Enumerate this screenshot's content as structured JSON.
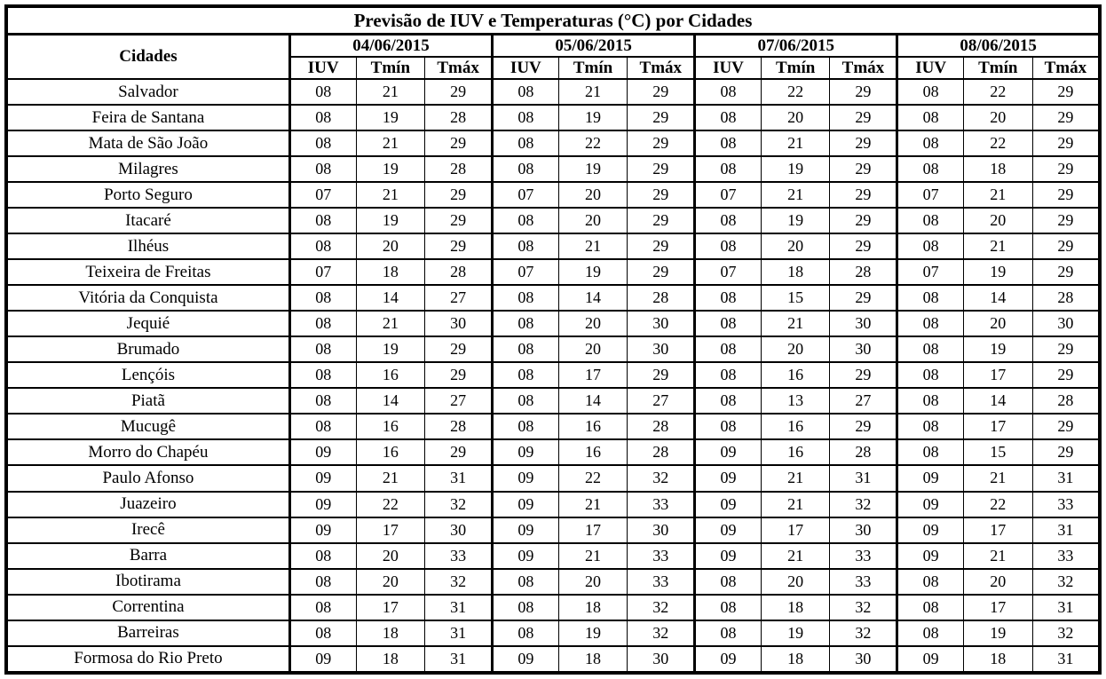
{
  "title": "Previsão de IUV e Temperaturas (°C) por Cidades",
  "colors": {
    "border": "#000000",
    "background": "#ffffff",
    "text": "#000000"
  },
  "table": {
    "city_column_header": "Cidades",
    "date_headers": [
      "04/06/2015",
      "05/06/2015",
      "07/06/2015",
      "08/06/2015"
    ],
    "sub_headers": [
      "IUV",
      "Tmín",
      "Tmáx"
    ],
    "rows": [
      {
        "city": "Salvador",
        "values": [
          [
            "08",
            "21",
            "29"
          ],
          [
            "08",
            "21",
            "29"
          ],
          [
            "08",
            "22",
            "29"
          ],
          [
            "08",
            "22",
            "29"
          ]
        ]
      },
      {
        "city": "Feira de Santana",
        "values": [
          [
            "08",
            "19",
            "28"
          ],
          [
            "08",
            "19",
            "29"
          ],
          [
            "08",
            "20",
            "29"
          ],
          [
            "08",
            "20",
            "29"
          ]
        ]
      },
      {
        "city": "Mata de São João",
        "values": [
          [
            "08",
            "21",
            "29"
          ],
          [
            "08",
            "22",
            "29"
          ],
          [
            "08",
            "21",
            "29"
          ],
          [
            "08",
            "22",
            "29"
          ]
        ]
      },
      {
        "city": "Milagres",
        "values": [
          [
            "08",
            "19",
            "28"
          ],
          [
            "08",
            "19",
            "29"
          ],
          [
            "08",
            "19",
            "29"
          ],
          [
            "08",
            "18",
            "29"
          ]
        ]
      },
      {
        "city": "Porto Seguro",
        "values": [
          [
            "07",
            "21",
            "29"
          ],
          [
            "07",
            "20",
            "29"
          ],
          [
            "07",
            "21",
            "29"
          ],
          [
            "07",
            "21",
            "29"
          ]
        ]
      },
      {
        "city": "Itacaré",
        "values": [
          [
            "08",
            "19",
            "29"
          ],
          [
            "08",
            "20",
            "29"
          ],
          [
            "08",
            "19",
            "29"
          ],
          [
            "08",
            "20",
            "29"
          ]
        ]
      },
      {
        "city": "Ilhéus",
        "values": [
          [
            "08",
            "20",
            "29"
          ],
          [
            "08",
            "21",
            "29"
          ],
          [
            "08",
            "20",
            "29"
          ],
          [
            "08",
            "21",
            "29"
          ]
        ]
      },
      {
        "city": "Teixeira de Freitas",
        "values": [
          [
            "07",
            "18",
            "28"
          ],
          [
            "07",
            "19",
            "29"
          ],
          [
            "07",
            "18",
            "28"
          ],
          [
            "07",
            "19",
            "29"
          ]
        ]
      },
      {
        "city": "Vitória da Conquista",
        "values": [
          [
            "08",
            "14",
            "27"
          ],
          [
            "08",
            "14",
            "28"
          ],
          [
            "08",
            "15",
            "29"
          ],
          [
            "08",
            "14",
            "28"
          ]
        ]
      },
      {
        "city": "Jequié",
        "values": [
          [
            "08",
            "21",
            "30"
          ],
          [
            "08",
            "20",
            "30"
          ],
          [
            "08",
            "21",
            "30"
          ],
          [
            "08",
            "20",
            "30"
          ]
        ]
      },
      {
        "city": "Brumado",
        "values": [
          [
            "08",
            "19",
            "29"
          ],
          [
            "08",
            "20",
            "30"
          ],
          [
            "08",
            "20",
            "30"
          ],
          [
            "08",
            "19",
            "29"
          ]
        ]
      },
      {
        "city": "Lençóis",
        "values": [
          [
            "08",
            "16",
            "29"
          ],
          [
            "08",
            "17",
            "29"
          ],
          [
            "08",
            "16",
            "29"
          ],
          [
            "08",
            "17",
            "29"
          ]
        ]
      },
      {
        "city": "Piatã",
        "values": [
          [
            "08",
            "14",
            "27"
          ],
          [
            "08",
            "14",
            "27"
          ],
          [
            "08",
            "13",
            "27"
          ],
          [
            "08",
            "14",
            "28"
          ]
        ]
      },
      {
        "city": "Mucugê",
        "values": [
          [
            "08",
            "16",
            "28"
          ],
          [
            "08",
            "16",
            "28"
          ],
          [
            "08",
            "16",
            "29"
          ],
          [
            "08",
            "17",
            "29"
          ]
        ]
      },
      {
        "city": "Morro do Chapéu",
        "values": [
          [
            "09",
            "16",
            "29"
          ],
          [
            "09",
            "16",
            "28"
          ],
          [
            "09",
            "16",
            "28"
          ],
          [
            "08",
            "15",
            "29"
          ]
        ]
      },
      {
        "city": "Paulo Afonso",
        "values": [
          [
            "09",
            "21",
            "31"
          ],
          [
            "09",
            "22",
            "32"
          ],
          [
            "09",
            "21",
            "31"
          ],
          [
            "09",
            "21",
            "31"
          ]
        ]
      },
      {
        "city": "Juazeiro",
        "values": [
          [
            "09",
            "22",
            "32"
          ],
          [
            "09",
            "21",
            "33"
          ],
          [
            "09",
            "21",
            "32"
          ],
          [
            "09",
            "22",
            "33"
          ]
        ]
      },
      {
        "city": "Irecê",
        "values": [
          [
            "09",
            "17",
            "30"
          ],
          [
            "09",
            "17",
            "30"
          ],
          [
            "09",
            "17",
            "30"
          ],
          [
            "09",
            "17",
            "31"
          ]
        ]
      },
      {
        "city": "Barra",
        "values": [
          [
            "08",
            "20",
            "33"
          ],
          [
            "09",
            "21",
            "33"
          ],
          [
            "09",
            "21",
            "33"
          ],
          [
            "09",
            "21",
            "33"
          ]
        ]
      },
      {
        "city": "Ibotirama",
        "values": [
          [
            "08",
            "20",
            "32"
          ],
          [
            "08",
            "20",
            "33"
          ],
          [
            "08",
            "20",
            "33"
          ],
          [
            "08",
            "20",
            "32"
          ]
        ]
      },
      {
        "city": "Correntina",
        "values": [
          [
            "08",
            "17",
            "31"
          ],
          [
            "08",
            "18",
            "32"
          ],
          [
            "08",
            "18",
            "32"
          ],
          [
            "08",
            "17",
            "31"
          ]
        ]
      },
      {
        "city": "Barreiras",
        "values": [
          [
            "08",
            "18",
            "31"
          ],
          [
            "08",
            "19",
            "32"
          ],
          [
            "08",
            "19",
            "32"
          ],
          [
            "08",
            "19",
            "32"
          ]
        ]
      },
      {
        "city": "Formosa do Rio Preto",
        "values": [
          [
            "09",
            "18",
            "31"
          ],
          [
            "09",
            "18",
            "30"
          ],
          [
            "09",
            "18",
            "30"
          ],
          [
            "09",
            "18",
            "31"
          ]
        ]
      }
    ]
  }
}
